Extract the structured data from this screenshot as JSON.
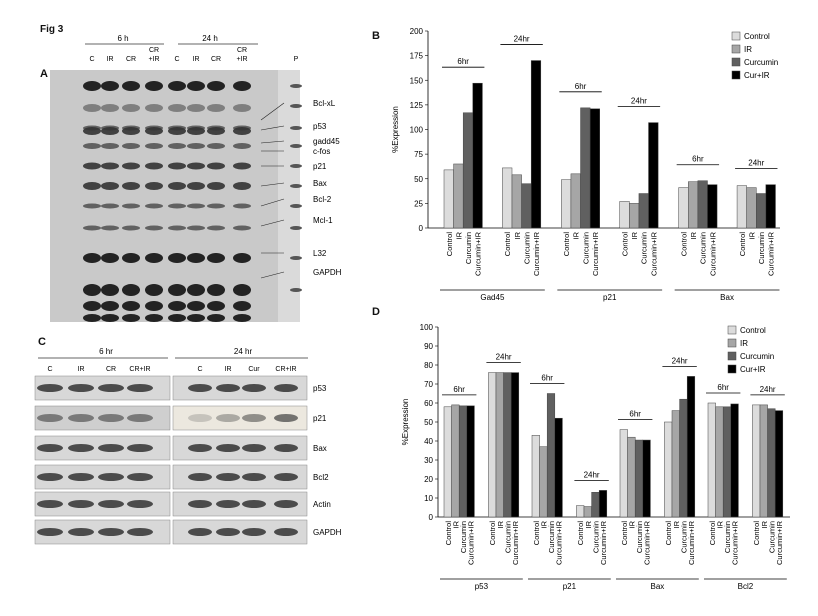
{
  "figure_label": "Fig 3",
  "panel_a": {
    "letter": "A",
    "time_headers": [
      "6 h",
      "24 h"
    ],
    "lanes": [
      "C",
      "IR",
      "CR",
      "CR\n+IR",
      "C",
      "IR",
      "CR",
      "CR\n+IR",
      "P"
    ],
    "band_labels": [
      "Bcl-xL",
      "p53",
      "gadd45",
      "c-fos",
      "p21",
      "Bax",
      "Bcl-2",
      "Mcl-1",
      "L32",
      "GAPDH"
    ]
  },
  "panel_c": {
    "letter": "C",
    "time_headers": [
      "6 hr",
      "24 hr"
    ],
    "lanes_left": [
      "C",
      "IR",
      "CR",
      "CR+IR"
    ],
    "lanes_right": [
      "C",
      "IR",
      "Cur",
      "CR+IR"
    ],
    "rows": [
      "p53",
      "p21",
      "Bax",
      "Bcl2",
      "Actin",
      "GAPDH"
    ]
  },
  "chart_data": [
    {
      "panel": "B",
      "type": "bar",
      "ylabel": "%Expression",
      "ylim": [
        0,
        200
      ],
      "yticks": [
        0,
        25,
        50,
        75,
        100,
        125,
        150,
        175,
        200
      ],
      "legend": [
        "Control",
        "IR",
        "Curcumin",
        "Cur+IR"
      ],
      "legend_position": "top-right",
      "colors": [
        "#dcdcdc",
        "#a6a6a6",
        "#606060",
        "#000000"
      ],
      "bar_labels": [
        "Control",
        "IR",
        "Curcumin",
        "Curcumin+IR"
      ],
      "groups": [
        {
          "gene": "Gad45",
          "time_labels": [
            "6hr",
            "24hr"
          ],
          "sets": [
            [
              59,
              65,
              117,
              147
            ],
            [
              61,
              54,
              45,
              170
            ]
          ]
        },
        {
          "gene": "p21",
          "time_labels": [
            "6hr",
            "24hr"
          ],
          "sets": [
            [
              49,
              55,
              122,
              121
            ],
            [
              27,
              25,
              35,
              107
            ]
          ]
        },
        {
          "gene": "Bax",
          "time_labels": [
            "6hr",
            "24hr"
          ],
          "sets": [
            [
              41,
              47,
              48,
              44
            ],
            [
              43,
              41,
              35,
              44
            ]
          ]
        }
      ]
    },
    {
      "panel": "D",
      "type": "bar",
      "ylabel": "%Expression",
      "ylim": [
        0,
        100
      ],
      "yticks": [
        0,
        10,
        20,
        30,
        40,
        50,
        60,
        70,
        80,
        90,
        100
      ],
      "legend": [
        "Control",
        "IR",
        "Curcumin",
        "Cur+IR"
      ],
      "legend_position": "top-right",
      "colors": [
        "#dcdcdc",
        "#a6a6a6",
        "#606060",
        "#000000"
      ],
      "bar_labels": [
        "Control",
        "IR",
        "Curcumin",
        "Curcumin+IR"
      ],
      "groups": [
        {
          "gene": "p53",
          "time_labels": [
            "6hr",
            "24hr"
          ],
          "sets": [
            [
              58,
              59,
              58.5,
              58.5
            ],
            [
              76,
              76,
              76,
              76
            ]
          ]
        },
        {
          "gene": "p21",
          "time_labels": [
            "6hr",
            "24hr"
          ],
          "sets": [
            [
              43,
              37,
              65,
              52
            ],
            [
              6,
              5.5,
              13,
              14
            ]
          ]
        },
        {
          "gene": "Bax",
          "time_labels": [
            "6hr",
            "24hr"
          ],
          "sets": [
            [
              46,
              42,
              40.5,
              40.5
            ],
            [
              50,
              56,
              62,
              74
            ]
          ]
        },
        {
          "gene": "Bcl2",
          "time_labels": [
            "6hr",
            "24hr"
          ],
          "sets": [
            [
              60,
              58,
              58,
              59.5
            ],
            [
              59,
              59,
              57,
              56
            ]
          ]
        }
      ]
    }
  ]
}
